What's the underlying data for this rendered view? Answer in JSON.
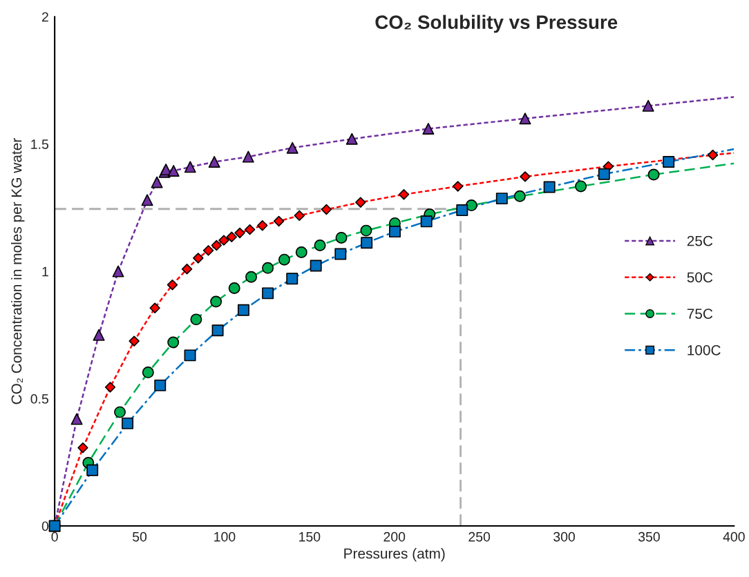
{
  "chart_data": {
    "type": "line",
    "title": "CO₂ Solubility vs Pressure",
    "xlabel": "Pressures (atm)",
    "ylabel": "CO₂ Concentration in moles per KG water",
    "xlim": [
      0,
      400
    ],
    "xticks": [
      0,
      50,
      100,
      150,
      200,
      250,
      300,
      350,
      400
    ],
    "ylim": [
      0,
      2
    ],
    "yticks": [
      0,
      0.5,
      1,
      1.5,
      2
    ],
    "grid": false,
    "legend": "right",
    "series": [
      {
        "name": "25C",
        "color": "#7030a0",
        "marker": "triangle",
        "line_style": "dotted",
        "x": [
          0,
          13,
          26,
          37.4,
          54.5,
          60.2,
          64.7,
          65.5,
          70,
          79.8,
          94,
          114,
          140,
          175,
          220,
          277,
          349.5
        ],
        "values": [
          0,
          0.42,
          0.75,
          1.0,
          1.28,
          1.35,
          1.39,
          1.4,
          1.395,
          1.41,
          1.43,
          1.45,
          1.485,
          1.52,
          1.56,
          1.6,
          1.65
        ]
      },
      {
        "name": "50C",
        "color": "#ff0000",
        "marker": "diamond",
        "line_style": "dotted",
        "x": [
          0,
          16.6,
          32.7,
          46.8,
          59,
          69.3,
          77.9,
          84.5,
          90.5,
          95.3,
          99.6,
          104.2,
          109,
          114.9,
          122.3,
          132,
          144.1,
          160,
          180.1,
          205.6,
          237.4,
          277,
          326,
          387.5
        ],
        "values": [
          0,
          0.307,
          0.545,
          0.726,
          0.856,
          0.947,
          1.009,
          1.052,
          1.082,
          1.102,
          1.122,
          1.135,
          1.151,
          1.164,
          1.18,
          1.197,
          1.219,
          1.243,
          1.271,
          1.302,
          1.334,
          1.372,
          1.412,
          1.457
        ]
      },
      {
        "name": "75C",
        "color": "#00b050",
        "marker": "circle",
        "line_style": "dashed",
        "x": [
          0,
          19.8,
          38.4,
          55,
          69.8,
          83.3,
          95,
          105.8,
          115.7,
          125.5,
          135.2,
          145.3,
          156.2,
          168.8,
          183.4,
          200.3,
          220.8,
          245.4,
          273.9,
          309.8,
          352.7
        ],
        "values": [
          0,
          0.248,
          0.447,
          0.603,
          0.721,
          0.811,
          0.881,
          0.934,
          0.978,
          1.013,
          1.046,
          1.075,
          1.102,
          1.132,
          1.16,
          1.189,
          1.224,
          1.259,
          1.295,
          1.334,
          1.38
        ]
      },
      {
        "name": "100C",
        "color": "#0070c0",
        "marker": "square",
        "line_style": "dashdot",
        "x": [
          0,
          22.2,
          42.9,
          62.1,
          79.7,
          96,
          111.2,
          125.5,
          139.8,
          153.8,
          168.3,
          183.7,
          200.3,
          218.9,
          239.9,
          263.3,
          291.3,
          323.5,
          361.5
        ],
        "values": [
          0,
          0.219,
          0.403,
          0.552,
          0.67,
          0.768,
          0.848,
          0.914,
          0.971,
          1.022,
          1.068,
          1.112,
          1.156,
          1.196,
          1.24,
          1.286,
          1.331,
          1.382,
          1.43
        ]
      },
      {
        "type": "line",
        "color": "#7030a0",
        "marker": "none",
        "line_style": "dotted",
        "x": [
          349.5,
          400
        ],
        "values": [
          1.65,
          1.685
        ]
      },
      {
        "type": "line",
        "color": "#ff0000",
        "marker": "none",
        "line_style": "dotted",
        "x": [
          387.5,
          400
        ],
        "values": [
          1.457,
          1.465
        ]
      },
      {
        "type": "line",
        "color": "#00b050",
        "marker": "none",
        "line_style": "dashed",
        "x": [
          352.7,
          400
        ],
        "values": [
          1.38,
          1.424
        ]
      },
      {
        "type": "line",
        "color": "#0070c0",
        "marker": "none",
        "line_style": "dashdot",
        "x": [
          361.5,
          400
        ],
        "values": [
          1.43,
          1.48
        ]
      }
    ],
    "ref_lines": [
      {
        "axis": "y",
        "value": 1.245,
        "color": "#b0b0b0",
        "line_style": "dashed"
      },
      {
        "axis": "x",
        "value": 239,
        "color": "#b0b0b0",
        "line_style": "dashed"
      }
    ]
  }
}
